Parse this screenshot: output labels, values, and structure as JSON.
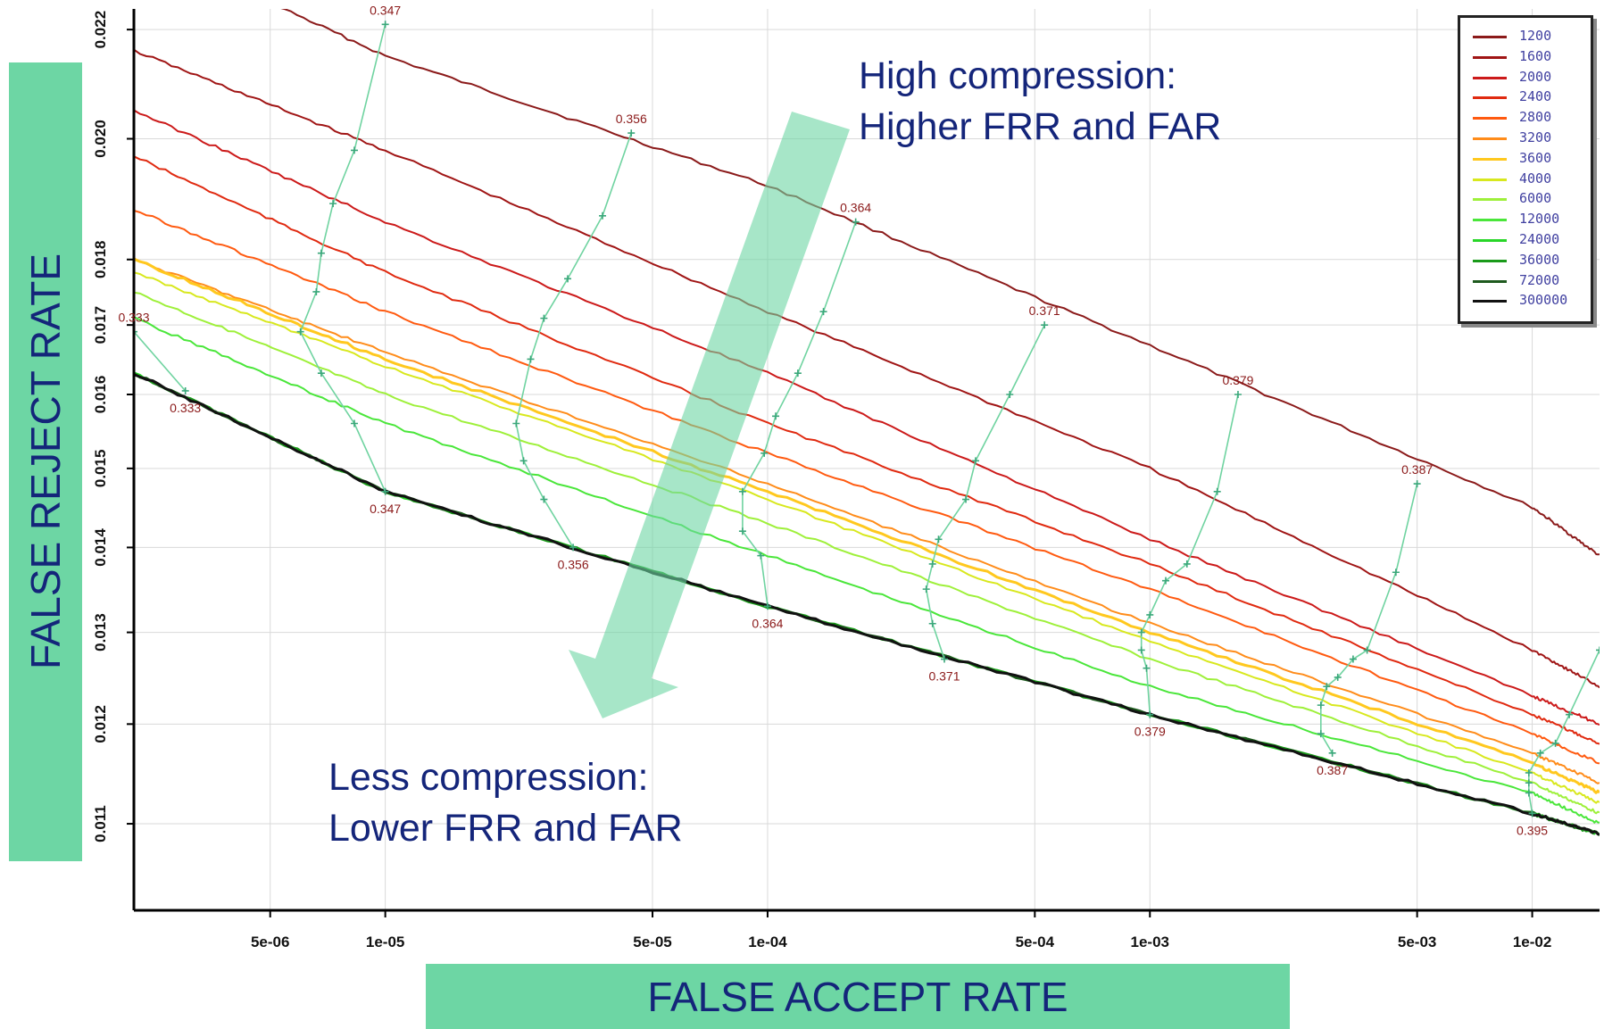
{
  "axes": {
    "xlabel": "FALSE ACCEPT RATE",
    "ylabel": "FALSE REJECT RATE",
    "x_ticks": [
      "5e-06",
      "1e-05",
      "5e-05",
      "1e-04",
      "5e-04",
      "1e-03",
      "5e-03",
      "1e-02"
    ],
    "y_ticks": [
      "0.011",
      "0.012",
      "0.013",
      "0.014",
      "0.015",
      "0.016",
      "0.017",
      "0.018",
      "0.020",
      "0.022"
    ]
  },
  "annotations": {
    "high_line1": "High compression:",
    "high_line2": "Higher FRR and FAR",
    "low_line1": "Less compression:",
    "low_line2": "Lower FRR and FAR"
  },
  "colors": {
    "banner": "#6dd6a4",
    "arrow": "#6dd6a4",
    "annotation_text": "#14257a",
    "threshold_line": "#6fd3a0",
    "threshold_label": "#8b1a1a"
  },
  "chart_data": {
    "type": "line",
    "x_scale": "log",
    "y_scale": "log",
    "xlim": [
      2.2e-06,
      0.015
    ],
    "ylim": [
      0.0102,
      0.0224
    ],
    "grid": true,
    "legend_position": "top-right",
    "series": [
      {
        "name": "1200",
        "color": "#8b1a1a",
        "width": 2,
        "x": [
          2.2e-06,
          1e-05,
          0.0001,
          0.001,
          0.01,
          0.015
        ],
        "y": [
          0.0238,
          0.0215,
          0.0192,
          0.0167,
          0.0145,
          0.0139
        ]
      },
      {
        "name": "1600",
        "color": "#a01515",
        "width": 2,
        "x": [
          2.2e-06,
          1e-05,
          0.0001,
          0.001,
          0.01,
          0.015
        ],
        "y": [
          0.0216,
          0.0198,
          0.0172,
          0.015,
          0.0128,
          0.0124
        ]
      },
      {
        "name": "2000",
        "color": "#cc1a1a",
        "width": 2,
        "x": [
          2.2e-06,
          1e-05,
          0.0001,
          0.001,
          0.01,
          0.015
        ],
        "y": [
          0.0205,
          0.0186,
          0.0163,
          0.0141,
          0.0123,
          0.012
        ]
      },
      {
        "name": "2400",
        "color": "#e02a10",
        "width": 2,
        "x": [
          2.2e-06,
          1e-05,
          0.0001,
          0.001,
          0.01,
          0.015
        ],
        "y": [
          0.0197,
          0.0178,
          0.0156,
          0.0138,
          0.0121,
          0.0118
        ]
      },
      {
        "name": "2800",
        "color": "#ff5a10",
        "width": 2,
        "x": [
          2.2e-06,
          1e-05,
          0.0001,
          0.001,
          0.01,
          0.015
        ],
        "y": [
          0.0188,
          0.0172,
          0.0152,
          0.0135,
          0.0119,
          0.0116
        ]
      },
      {
        "name": "3200",
        "color": "#ff8c1a",
        "width": 2,
        "x": [
          2.2e-06,
          1e-05,
          0.0001,
          0.001,
          0.01,
          0.015
        ],
        "y": [
          0.018,
          0.0166,
          0.0148,
          0.0131,
          0.0117,
          0.0114
        ]
      },
      {
        "name": "3600",
        "color": "#ffc81e",
        "width": 3,
        "x": [
          2.2e-06,
          1e-05,
          0.0001,
          0.001,
          0.01,
          0.015
        ],
        "y": [
          0.018,
          0.0165,
          0.0147,
          0.013,
          0.0116,
          0.0113
        ]
      },
      {
        "name": "4000",
        "color": "#d8e81e",
        "width": 2,
        "x": [
          2.2e-06,
          1e-05,
          0.0001,
          0.001,
          0.01,
          0.015
        ],
        "y": [
          0.0178,
          0.0164,
          0.0146,
          0.0129,
          0.0115,
          0.0112
        ]
      },
      {
        "name": "6000",
        "color": "#9ef03a",
        "width": 2,
        "x": [
          2.2e-06,
          1e-05,
          0.0001,
          0.001,
          0.01,
          0.015
        ],
        "y": [
          0.0175,
          0.016,
          0.0143,
          0.0127,
          0.0114,
          0.0111
        ]
      },
      {
        "name": "12000",
        "color": "#4ae63a",
        "width": 2,
        "x": [
          2.2e-06,
          1e-05,
          0.0001,
          0.001,
          0.01,
          0.015
        ],
        "y": [
          0.0171,
          0.0156,
          0.0139,
          0.0124,
          0.0113,
          0.011
        ]
      },
      {
        "name": "24000",
        "color": "#28d628",
        "width": 2,
        "x": [
          2.2e-06,
          1e-05,
          0.0001,
          0.001,
          0.01,
          0.015
        ],
        "y": [
          0.0163,
          0.0147,
          0.0133,
          0.0121,
          0.0111,
          0.0109
        ]
      },
      {
        "name": "36000",
        "color": "#1a9a1a",
        "width": 3,
        "x": [
          2.2e-06,
          1e-05,
          0.0001,
          0.001,
          0.01,
          0.015
        ],
        "y": [
          0.0163,
          0.0147,
          0.0133,
          0.0121,
          0.0111,
          0.0109
        ]
      },
      {
        "name": "72000",
        "color": "#1e5a1e",
        "width": 2,
        "x": [
          2.2e-06,
          1e-05,
          0.0001,
          0.001,
          0.01,
          0.015
        ],
        "y": [
          0.0163,
          0.0147,
          0.0133,
          0.0121,
          0.0111,
          0.0109
        ]
      },
      {
        "name": "300000",
        "color": "#111111",
        "width": 3,
        "x": [
          2.2e-06,
          1e-05,
          0.0001,
          0.001,
          0.01,
          0.015
        ],
        "y": [
          0.0163,
          0.0147,
          0.0133,
          0.0121,
          0.0111,
          0.0109
        ]
      }
    ],
    "threshold_lines": [
      {
        "label_top": "0.333",
        "label_bottom": "0.333",
        "points": [
          [
            2.2e-06,
            0.0169
          ],
          [
            3e-06,
            0.01605
          ]
        ]
      },
      {
        "label_top": "0.347",
        "label_bottom": "0.347",
        "points": [
          [
            1e-05,
            0.0221
          ],
          [
            8.3e-06,
            0.0198
          ],
          [
            7.3e-06,
            0.0189
          ],
          [
            6.8e-06,
            0.0181
          ],
          [
            6.6e-06,
            0.0175
          ],
          [
            6e-06,
            0.0169
          ],
          [
            6.8e-06,
            0.0163
          ],
          [
            8.3e-06,
            0.0156
          ],
          [
            1e-05,
            0.0147
          ]
        ]
      },
      {
        "label_top": "0.356",
        "label_bottom": "0.356",
        "points": [
          [
            4.4e-05,
            0.0201
          ],
          [
            3.7e-05,
            0.0187
          ],
          [
            3e-05,
            0.0177
          ],
          [
            2.6e-05,
            0.0171
          ],
          [
            2.4e-05,
            0.0165
          ],
          [
            2.2e-05,
            0.0156
          ],
          [
            2.3e-05,
            0.0151
          ],
          [
            2.6e-05,
            0.0146
          ],
          [
            3.1e-05,
            0.014
          ]
        ]
      },
      {
        "label_top": "0.364",
        "label_bottom": "0.364",
        "points": [
          [
            0.00017,
            0.0186
          ],
          [
            0.00014,
            0.0172
          ],
          [
            0.00012,
            0.0163
          ],
          [
            0.000105,
            0.0157
          ],
          [
            9.8e-05,
            0.0152
          ],
          [
            8.6e-05,
            0.0147
          ],
          [
            8.6e-05,
            0.0142
          ],
          [
            9.6e-05,
            0.0139
          ],
          [
            0.0001,
            0.0133
          ]
        ]
      },
      {
        "label_top": "0.371",
        "label_bottom": "0.371",
        "points": [
          [
            0.00053,
            0.017
          ],
          [
            0.00043,
            0.016
          ],
          [
            0.00035,
            0.0151
          ],
          [
            0.00033,
            0.0146
          ],
          [
            0.00028,
            0.0141
          ],
          [
            0.00027,
            0.0138
          ],
          [
            0.00026,
            0.0135
          ],
          [
            0.00027,
            0.0131
          ],
          [
            0.00029,
            0.0127
          ]
        ]
      },
      {
        "label_top": "0.379",
        "label_bottom": "0.379",
        "points": [
          [
            0.0017,
            0.016
          ],
          [
            0.0015,
            0.0147
          ],
          [
            0.00125,
            0.0138
          ],
          [
            0.0011,
            0.0136
          ],
          [
            0.001,
            0.0132
          ],
          [
            0.00095,
            0.013
          ],
          [
            0.00095,
            0.0128
          ],
          [
            0.00098,
            0.0126
          ],
          [
            0.001,
            0.0121
          ]
        ]
      },
      {
        "label_top": "0.387",
        "label_bottom": "0.387",
        "points": [
          [
            0.005,
            0.0148
          ],
          [
            0.0044,
            0.0137
          ],
          [
            0.0037,
            0.0128
          ],
          [
            0.0034,
            0.0127
          ],
          [
            0.0031,
            0.0125
          ],
          [
            0.0029,
            0.0124
          ],
          [
            0.0028,
            0.0122
          ],
          [
            0.0028,
            0.0119
          ],
          [
            0.003,
            0.0117
          ]
        ]
      },
      {
        "label_top": "",
        "label_bottom": "0.395",
        "points": [
          [
            0.015,
            0.0128
          ],
          [
            0.0125,
            0.0121
          ],
          [
            0.0115,
            0.0118
          ],
          [
            0.0105,
            0.0117
          ],
          [
            0.0098,
            0.0115
          ],
          [
            0.0098,
            0.0114
          ],
          [
            0.0098,
            0.0113
          ],
          [
            0.01,
            0.0111
          ]
        ]
      }
    ]
  },
  "legend": {
    "items": [
      {
        "label": "1200",
        "color": "#8b1a1a"
      },
      {
        "label": "1600",
        "color": "#a01515"
      },
      {
        "label": "2000",
        "color": "#cc1a1a"
      },
      {
        "label": "2400",
        "color": "#e02a10"
      },
      {
        "label": "2800",
        "color": "#ff5a10"
      },
      {
        "label": "3200",
        "color": "#ff8c1a"
      },
      {
        "label": "3600",
        "color": "#ffc81e"
      },
      {
        "label": "4000",
        "color": "#d8e81e"
      },
      {
        "label": "6000",
        "color": "#9ef03a"
      },
      {
        "label": "12000",
        "color": "#4ae63a"
      },
      {
        "label": "24000",
        "color": "#28d628"
      },
      {
        "label": "36000",
        "color": "#1a9a1a"
      },
      {
        "label": "72000",
        "color": "#1e5a1e"
      },
      {
        "label": "300000",
        "color": "#111111"
      }
    ]
  }
}
